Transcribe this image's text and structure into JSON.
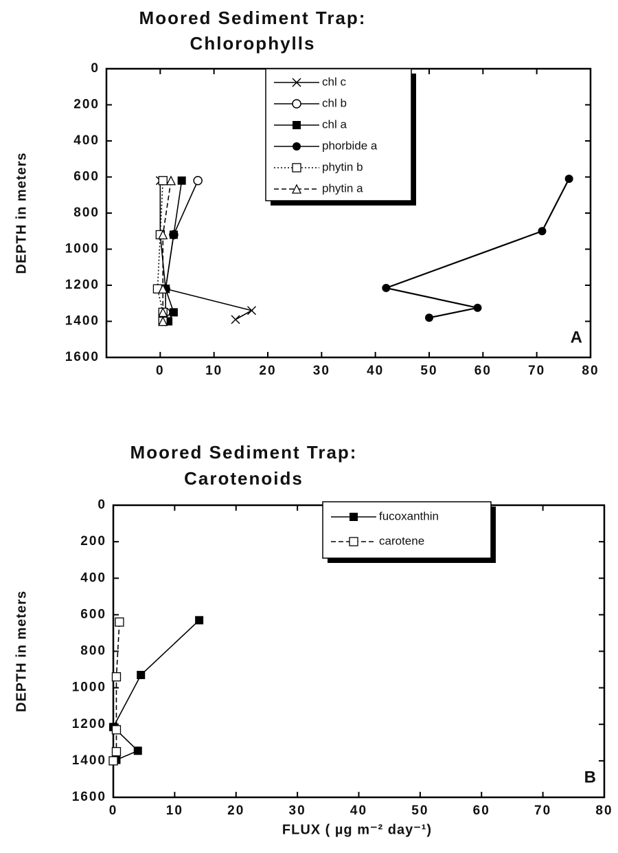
{
  "chart_data": [
    {
      "type": "line",
      "title": [
        "Moored Sediment Trap:",
        "Chlorophylls"
      ],
      "y_label": "DEPTH in meters",
      "annotation": "A",
      "xlim": [
        -10,
        80
      ],
      "xticks": [
        0,
        10,
        20,
        30,
        40,
        50,
        60,
        70,
        80
      ],
      "ylim": [
        0,
        1600
      ],
      "yticks": [
        0,
        200,
        400,
        600,
        800,
        1000,
        1200,
        1400,
        1600
      ],
      "y_inverted": true,
      "series": [
        {
          "name": "chl c",
          "color": "#000",
          "marker": "x",
          "linestyle": "solid",
          "x": [
            0,
            0,
            1,
            17,
            14
          ],
          "y": [
            620,
            920,
            1220,
            1340,
            1390
          ]
        },
        {
          "name": "chl b",
          "color": "#000",
          "marker": "open-circle",
          "linestyle": "solid",
          "x": [
            7,
            2.5,
            1,
            1,
            1
          ],
          "y": [
            620,
            920,
            1220,
            1350,
            1400
          ]
        },
        {
          "name": "chl a",
          "color": "#000",
          "marker": "filled-square",
          "linestyle": "solid",
          "x": [
            4,
            2.5,
            1,
            2.5,
            1.5
          ],
          "y": [
            620,
            920,
            1220,
            1350,
            1400
          ]
        },
        {
          "name": "phorbide a",
          "color": "#000",
          "marker": "filled-circle",
          "linestyle": "solid",
          "x": [
            76,
            71,
            42,
            59,
            50
          ],
          "y": [
            610,
            900,
            1215,
            1325,
            1380
          ]
        },
        {
          "name": "phytin b",
          "color": "#000",
          "marker": "open-square",
          "linestyle": "dotted",
          "x": [
            0.5,
            0,
            -0.5,
            0.5,
            0.5
          ],
          "y": [
            620,
            920,
            1220,
            1350,
            1400
          ]
        },
        {
          "name": "phytin a",
          "color": "#000",
          "marker": "open-triangle",
          "linestyle": "dashed",
          "x": [
            2,
            0.5,
            0.5,
            0.5,
            0.5
          ],
          "y": [
            620,
            920,
            1220,
            1350,
            1400
          ]
        }
      ]
    },
    {
      "type": "line",
      "title": [
        "Moored Sediment Trap:",
        "Carotenoids"
      ],
      "y_label": "DEPTH in meters",
      "x_label": "FLUX ( µg m⁻² day⁻¹)",
      "annotation": "B",
      "xlim": [
        0,
        80
      ],
      "xticks": [
        0,
        10,
        20,
        30,
        40,
        50,
        60,
        70,
        80
      ],
      "ylim": [
        0,
        1600
      ],
      "yticks": [
        0,
        200,
        400,
        600,
        800,
        1000,
        1200,
        1400,
        1600
      ],
      "y_inverted": true,
      "series": [
        {
          "name": "fucoxanthin",
          "color": "#000",
          "marker": "filled-square",
          "linestyle": "solid",
          "x": [
            14,
            4.5,
            0,
            4,
            0.5
          ],
          "y": [
            630,
            930,
            1215,
            1345,
            1395
          ]
        },
        {
          "name": "carotene",
          "color": "#000",
          "marker": "open-square",
          "linestyle": "dashed",
          "x": [
            1,
            0.5,
            0.5,
            0.5,
            0
          ],
          "y": [
            640,
            940,
            1230,
            1350,
            1400
          ]
        }
      ]
    }
  ]
}
